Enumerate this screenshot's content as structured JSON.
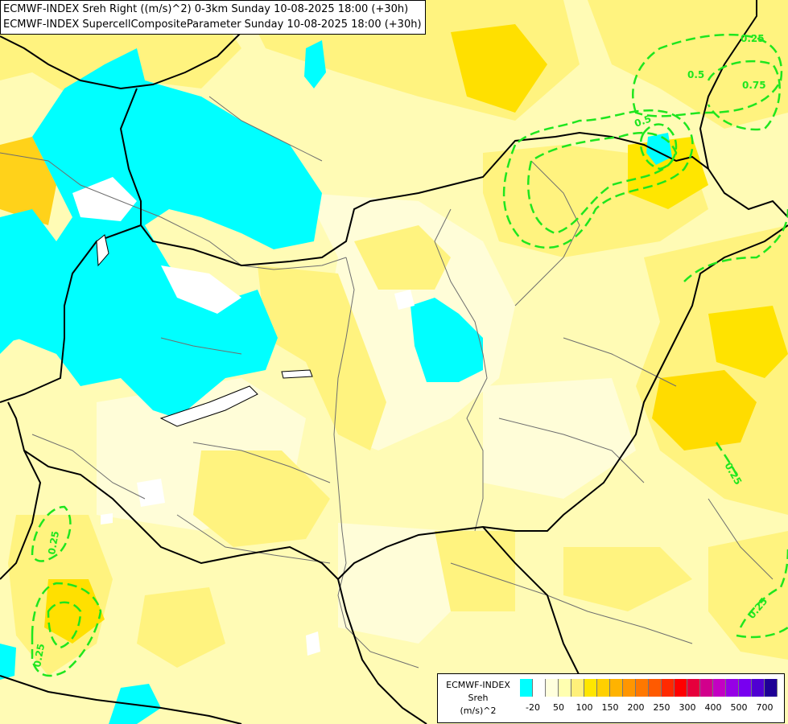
{
  "titles": {
    "line1": "ECMWF-INDEX Sreh Right ((m/s)^2) 0-3km Sunday 10-08-2025 18:00 (+30h)",
    "line2": "ECMWF-INDEX SupercellCompositeParameter Sunday 10-08-2025 18:00 (+30h)"
  },
  "legend": {
    "line1": "ECMWF-INDEX",
    "line2": "Sreh",
    "line3": "(m/s)^2",
    "ticks": [
      "-20",
      "50",
      "100",
      "150",
      "200",
      "250",
      "300",
      "400",
      "500",
      "700"
    ],
    "colors": [
      "#00ffff",
      "#ffffff",
      "#ffffdd",
      "#ffffb0",
      "#fff07a",
      "#ffe600",
      "#ffd000",
      "#ffb300",
      "#ff9600",
      "#ff7800",
      "#ff5a00",
      "#ff2a00",
      "#ff0000",
      "#e6003c",
      "#d2008c",
      "#c300c3",
      "#9600e6",
      "#7800f0",
      "#5000d2",
      "#1e0096"
    ]
  },
  "contour_labels": [
    "0.25",
    "0.5",
    "0.75",
    "0.5",
    "0.25",
    "0.25",
    "0.25",
    "0.25"
  ],
  "colors": {
    "contour": "#1ee61e",
    "low_sreh": "#00ffff",
    "border": "#000000",
    "river": "#6e6e6e"
  }
}
